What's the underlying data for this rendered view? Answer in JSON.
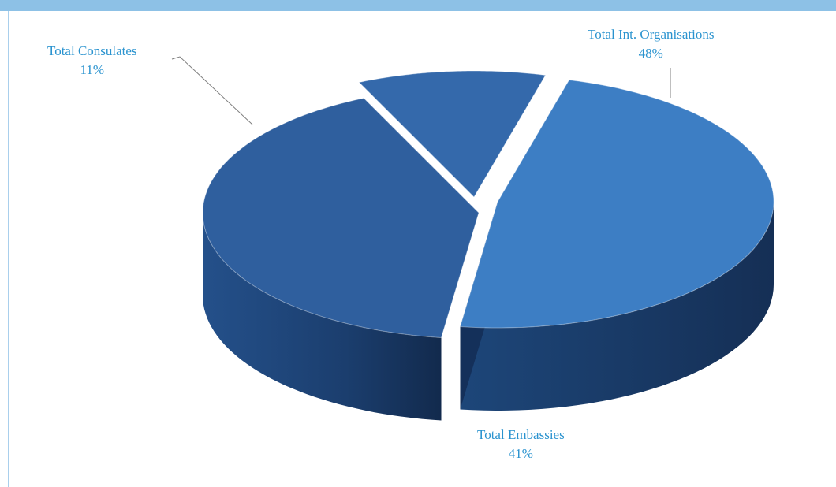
{
  "chart_data": {
    "type": "pie",
    "title": "",
    "slices": [
      {
        "label": "Total Int. Organisations",
        "value": 48,
        "value_label": "48%",
        "color": "#3d7ec4"
      },
      {
        "label": "Total Embassies",
        "value": 41,
        "value_label": "41%",
        "color": "#2f5f9e"
      },
      {
        "label": "Total Consulates",
        "value": 11,
        "value_label": "11%",
        "color": "#3469ab"
      }
    ],
    "style": "3d-exploded"
  },
  "colors": {
    "header_bar": "#8dc1e6",
    "label_text": "#2a93cf"
  }
}
